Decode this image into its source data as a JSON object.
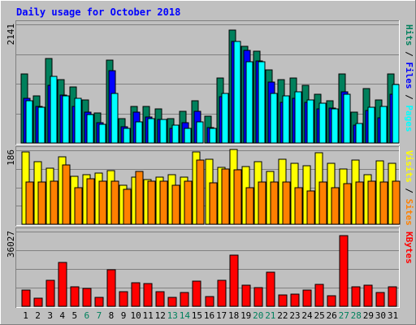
{
  "chart_data": {
    "type": "bar",
    "title": "Daily usage for October 2018",
    "categories": [
      "1",
      "2",
      "3",
      "4",
      "5",
      "6",
      "7",
      "8",
      "9",
      "10",
      "11",
      "12",
      "13",
      "14",
      "15",
      "16",
      "17",
      "18",
      "19",
      "20",
      "21",
      "22",
      "23",
      "24",
      "25",
      "26",
      "27",
      "28",
      "29",
      "30",
      "31"
    ],
    "weekend_days": [
      "6",
      "7",
      "13",
      "14",
      "20",
      "21",
      "27",
      "28"
    ],
    "panels": [
      {
        "id": "hits_files_pages",
        "y_max_label": "2141",
        "y_max": 2141,
        "right_axis_labels": [
          "Pages",
          "Files",
          "Hits"
        ],
        "series": [
          {
            "name": "Hits",
            "color": "#00805c",
            "values": [
              1240,
              850,
              1520,
              1150,
              1010,
              775,
              545,
              1500,
              440,
              655,
              655,
              620,
              440,
              575,
              765,
              485,
              1180,
              2040,
              1740,
              1660,
              1320,
              1150,
              1170,
              1040,
              880,
              760,
              1250,
              555,
              985,
              780,
              1240
            ]
          },
          {
            "name": "Files",
            "color": "#0000ff",
            "values": [
              800,
              660,
              1040,
              860,
              660,
              560,
              370,
              1300,
              290,
              560,
              470,
              430,
              260,
              370,
              565,
              280,
              840,
              1830,
              1670,
              1480,
              1100,
              735,
              800,
              740,
              620,
              625,
              930,
              325,
              580,
              455,
              880
            ]
          },
          {
            "name": "Pages",
            "color": "#00ffff",
            "values": [
              760,
              650,
              1200,
              850,
              800,
              510,
              330,
              900,
              260,
              380,
              440,
              420,
              320,
              260,
              380,
              260,
              900,
              1830,
              1460,
              1470,
              900,
              850,
              930,
              780,
              720,
              620,
              880,
              350,
              640,
              660,
              1050
            ]
          }
        ]
      },
      {
        "id": "visits_sites",
        "y_max_label": "186",
        "y_max": 186,
        "right_axis_labels": [
          "Sites",
          "Visits"
        ],
        "series": [
          {
            "name": "Visits",
            "color": "#ffff00",
            "values": [
              182,
              157,
              142,
              170,
              121,
              124,
              128,
              134,
              98,
              118,
              112,
              118,
              124,
              118,
              182,
              164,
              144,
              188,
              146,
              158,
              132,
              164,
              154,
              147,
              180,
              153,
              138,
              161,
              124,
              159,
              154
            ]
          },
          {
            "name": "Sites",
            "color": "#ff8000",
            "values": [
              106,
              106,
              109,
              150,
              91,
              115,
              109,
              109,
              87,
              132,
              109,
              109,
              99,
              109,
              161,
              104,
              140,
              136,
              92,
              106,
              106,
              106,
              92,
              84,
              106,
              92,
              102,
              106,
              109,
              106,
              109
            ]
          }
        ]
      },
      {
        "id": "kbytes",
        "y_max_label": "36027",
        "y_max": 36027,
        "right_axis_labels": [
          "KBytes"
        ],
        "series": [
          {
            "name": "KBytes",
            "color": "#ff0000",
            "values": [
              8000,
              4000,
              12500,
              21000,
              9500,
              8500,
              4500,
              17500,
              7000,
              11500,
              11000,
              7000,
              4500,
              6500,
              12000,
              4700,
              12500,
              24500,
              10000,
              9200,
              16500,
              5500,
              5800,
              8000,
              10500,
              5000,
              34000,
              9500,
              10200,
              6500,
              9500
            ]
          }
        ]
      }
    ]
  },
  "colors": {
    "page_bg": "#c0c0c0",
    "panel_bg": "#c0c0c0",
    "grid": "#808080",
    "title": "#0000ff",
    "weekday_label": "#000000",
    "weekend_label": "#00805c",
    "hits_label": "#00805c",
    "files_label": "#0000ff",
    "pages_label": "#00ffff",
    "visits_label": "#ffff00",
    "sites_label": "#ff8000",
    "kbytes_label": "#ff0000"
  }
}
